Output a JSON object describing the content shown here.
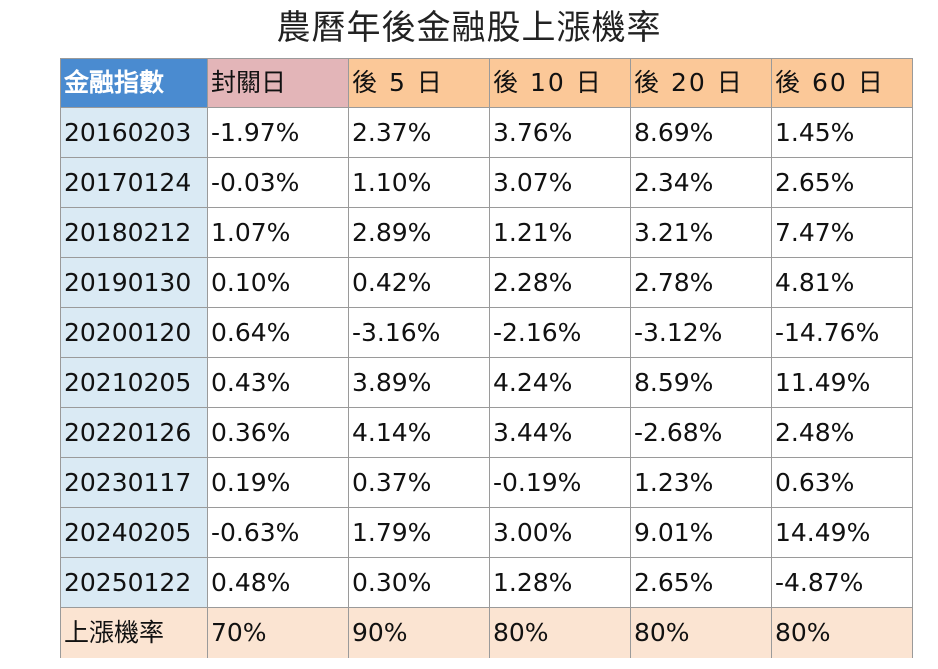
{
  "title": "農曆年後金融股上漲機率",
  "headers": [
    "金融指數",
    "封關日",
    "後 5 日",
    "後 10 日",
    "後 20 日",
    "後 60 日"
  ],
  "rows": [
    {
      "date": "20160203",
      "values": [
        "-1.97%",
        "2.37%",
        "3.76%",
        "8.69%",
        "1.45%"
      ]
    },
    {
      "date": "20170124",
      "values": [
        "-0.03%",
        "1.10%",
        "3.07%",
        "2.34%",
        "2.65%"
      ]
    },
    {
      "date": "20180212",
      "values": [
        "1.07%",
        "2.89%",
        "1.21%",
        "3.21%",
        "7.47%"
      ]
    },
    {
      "date": "20190130",
      "values": [
        "0.10%",
        "0.42%",
        "2.28%",
        "2.78%",
        "4.81%"
      ]
    },
    {
      "date": "20200120",
      "values": [
        "0.64%",
        "-3.16%",
        "-2.16%",
        "-3.12%",
        "-14.76%"
      ]
    },
    {
      "date": "20210205",
      "values": [
        "0.43%",
        "3.89%",
        "4.24%",
        "8.59%",
        "11.49%"
      ]
    },
    {
      "date": "20220126",
      "values": [
        "0.36%",
        "4.14%",
        "3.44%",
        "-2.68%",
        "2.48%"
      ]
    },
    {
      "date": "20230117",
      "values": [
        "0.19%",
        "0.37%",
        "-0.19%",
        "1.23%",
        "0.63%"
      ]
    },
    {
      "date": "20240205",
      "values": [
        "-0.63%",
        "1.79%",
        "3.00%",
        "9.01%",
        "14.49%"
      ]
    },
    {
      "date": "20250122",
      "values": [
        "0.48%",
        "0.30%",
        "1.28%",
        "2.65%",
        "-4.87%"
      ]
    }
  ],
  "footer": {
    "label": "上漲機率",
    "values": [
      "70%",
      "90%",
      "80%",
      "80%",
      "80%"
    ]
  },
  "colors": {
    "index_header_bg": "#4a8bd0",
    "day0_header_bg": "#e3b5b8",
    "after_header_bg": "#fbc898",
    "date_column_bg": "#daeaf4",
    "footer_bg": "#fbe4d2"
  }
}
